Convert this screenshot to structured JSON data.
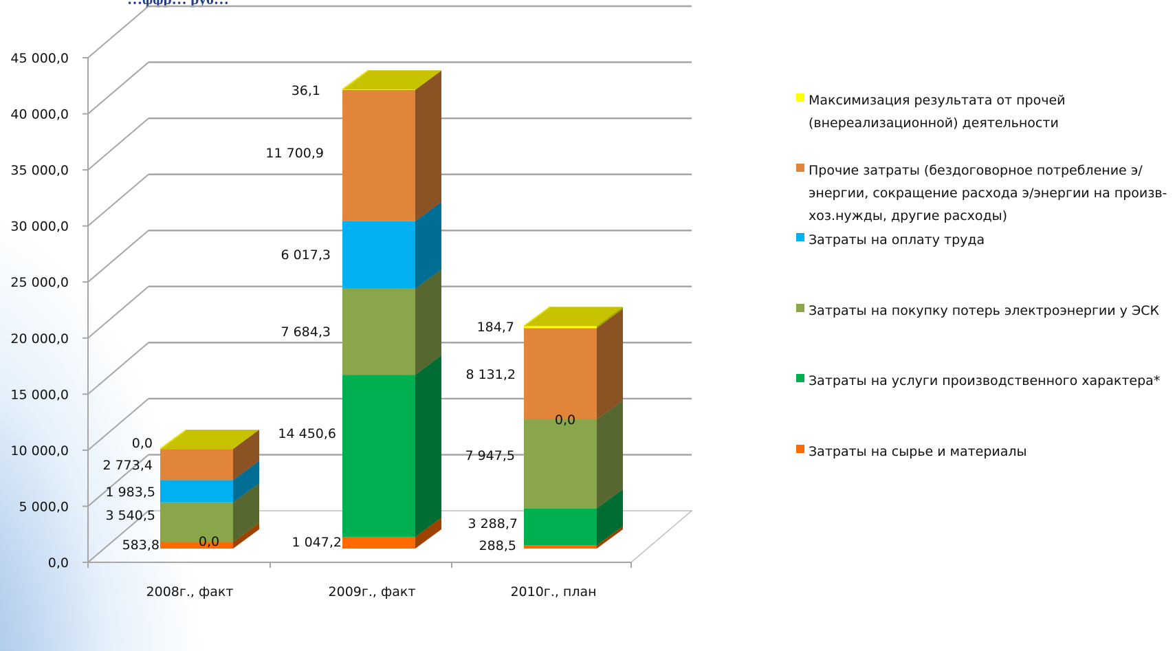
{
  "title_fragment": "…ффр… руб…",
  "chart_data": {
    "type": "bar",
    "stacked": true,
    "three_d": true,
    "categories": [
      "2008г., факт",
      "2009г., факт",
      "2010г., план"
    ],
    "ylim": [
      0,
      45000
    ],
    "yticks": [
      0,
      5000,
      10000,
      15000,
      20000,
      25000,
      30000,
      35000,
      40000,
      45000
    ],
    "ytick_labels": [
      "0,0",
      "5 000,0",
      "10 000,0",
      "15 000,0",
      "20 000,0",
      "25 000,0",
      "30 000,0",
      "35 000,0",
      "40 000,0",
      "45 000,0"
    ],
    "grid": true,
    "legend_position": "right",
    "series": [
      {
        "name": "Затраты на сырье и материалы",
        "color": "#ff6a00",
        "values": [
          583.8,
          1047.2,
          288.5
        ],
        "labels": [
          "583,8",
          "1 047,2",
          "288,5"
        ]
      },
      {
        "name": "Затраты на услуги производственного характера*",
        "color": "#00b050",
        "values": [
          0.0,
          14450.6,
          3288.7
        ],
        "labels": [
          "0,0",
          "14 450,6",
          "3 288,7"
        ]
      },
      {
        "name": "Затраты на покупку потерь электроэнергии у ЭСК",
        "color": "#8aa64b",
        "values": [
          3540.5,
          7684.3,
          7947.5
        ],
        "labels": [
          "3 540,5",
          "7 684,3",
          "7 947,5"
        ]
      },
      {
        "name": "Затраты на оплату труда",
        "color": "#00b0f0",
        "values": [
          1983.5,
          6017.3,
          0.0
        ],
        "labels": [
          "1 983,5",
          "6 017,3",
          "0,0"
        ]
      },
      {
        "name": "Прочие затраты (бездоговорное потребление э/энергии, сокращение расхода э/энергии на произв-хоз.нужды, другие расходы)",
        "color": "#e0853a",
        "values": [
          2773.4,
          11700.9,
          8131.2
        ],
        "labels": [
          "2 773,4",
          "11 700,9",
          "8 131,2"
        ]
      },
      {
        "name": "Максимизация результата от прочей (внереализационной) деятельности",
        "color": "#ffff00",
        "values": [
          0.0,
          36.1,
          184.7
        ],
        "labels": [
          "0,0",
          "36,1",
          "184,7"
        ]
      }
    ],
    "legend": [
      {
        "label": "Максимизация результата от прочей (внереализационной) деятельности",
        "color": "#ffff00"
      },
      {
        "label": "Прочие затраты (бездоговорное потребление э/энергии, сокращение расхода э/энергии на произв-хоз.нужды, другие расходы)",
        "color": "#e0853a"
      },
      {
        "label": "Затраты на оплату труда",
        "color": "#00b0f0"
      },
      {
        "label": "Затраты на покупку потерь электроэнергии у ЭСК",
        "color": "#8aa64b"
      },
      {
        "label": "Затраты на услуги производственного характера*",
        "color": "#00b050"
      },
      {
        "label": "Затраты на сырье и материалы",
        "color": "#ff6a00"
      }
    ]
  }
}
